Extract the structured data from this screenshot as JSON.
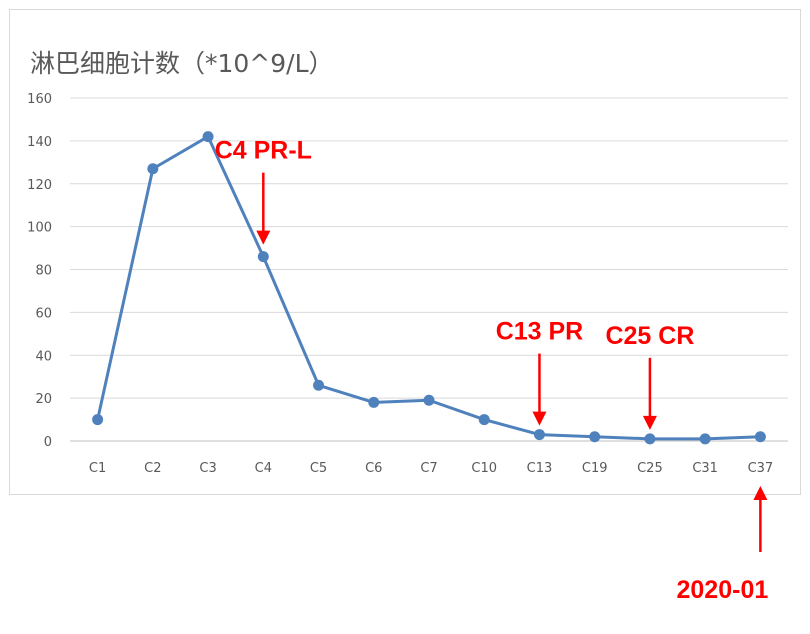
{
  "chart_data": {
    "type": "line",
    "title": "淋巴细胞计数（*10^9/L）",
    "xlabel": "",
    "ylabel": "",
    "ylim": [
      0,
      160
    ],
    "yticks": [
      0,
      20,
      40,
      60,
      80,
      100,
      120,
      140,
      160
    ],
    "grid": true,
    "legend": "none",
    "categories": [
      "C1",
      "C2",
      "C3",
      "C4",
      "C5",
      "C6",
      "C7",
      "C10",
      "C13",
      "C19",
      "C25",
      "C31",
      "C37"
    ],
    "series": [
      {
        "values": [
          10,
          127,
          142,
          86,
          26,
          18,
          19,
          10,
          3,
          2,
          1,
          1,
          2
        ],
        "color": "#4f81bd"
      }
    ],
    "annotations": [
      {
        "text": "C4 PR-L",
        "category": "C4",
        "arrow": "down"
      },
      {
        "text": "C13 PR",
        "category": "C13",
        "arrow": "down"
      },
      {
        "text": "C25 CR",
        "category": "C25",
        "arrow": "down"
      },
      {
        "text": "2020-01",
        "category": "C37",
        "arrow": "up"
      }
    ],
    "annotation_color": "#ff0000"
  }
}
